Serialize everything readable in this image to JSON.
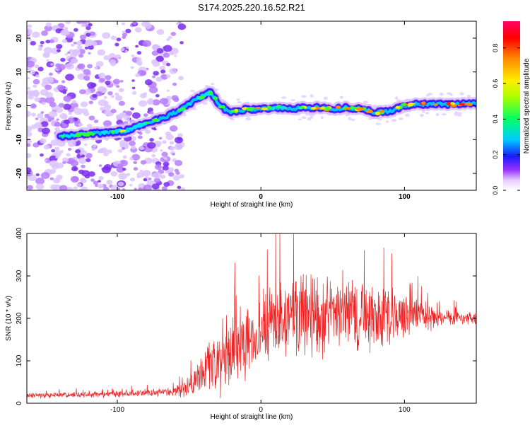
{
  "figure": {
    "title": "S174.2025.220.16.52.R21"
  },
  "chart_data": [
    {
      "type": "heatmap",
      "xlabel": "Height of straight line (km)",
      "ylabel": "Frequency (Hz)",
      "xlim": [
        -163,
        150
      ],
      "ylim": [
        -25,
        25
      ],
      "x_ticks": [
        -100,
        0,
        100
      ],
      "y_ticks": [
        -20,
        -10,
        0,
        10,
        20
      ],
      "colorbar": {
        "label": "Normalized spectral amplitude",
        "range": [
          0,
          0.95
        ],
        "ticks": [
          0.0,
          0.2,
          0.4,
          0.6,
          0.8
        ]
      },
      "ridge": {
        "x": [
          -140,
          -125,
          -110,
          -95,
          -85,
          -75,
          -65,
          -55,
          -45,
          -35,
          -30,
          -25,
          -20,
          -15,
          -10,
          0,
          10,
          20,
          30,
          40,
          50,
          60,
          70,
          80,
          90,
          100,
          110,
          120,
          130,
          140,
          150
        ],
        "y": [
          -9,
          -8.5,
          -8,
          -7.5,
          -6,
          -4.5,
          -3,
          -1,
          2,
          4,
          1,
          -1,
          -2,
          -1.5,
          -1,
          -1,
          -0.5,
          -1,
          -0.5,
          -0.5,
          -1,
          -0.5,
          -1,
          -2,
          -1.5,
          0,
          0.5,
          0.5,
          0.5,
          0.5,
          0.5
        ]
      },
      "grid": false
    },
    {
      "type": "line",
      "xlabel": "Height of straight line (km)",
      "ylabel": "SNR (10 * v/v)",
      "xlim": [
        -163,
        150
      ],
      "ylim": [
        0,
        400
      ],
      "x_ticks": [
        -100,
        0,
        100
      ],
      "y_ticks": [
        0,
        100,
        200,
        300,
        400
      ],
      "series": [
        {
          "color": "#ee2222",
          "envelope": {
            "x": [
              -163,
              -120,
              -100,
              -80,
              -60,
              -50,
              -45,
              -40,
              -35,
              -30,
              -25,
              -20,
              -15,
              -10,
              0,
              10,
              20,
              30,
              40,
              50,
              60,
              70,
              80,
              90,
              100,
              110,
              115,
              120,
              130,
              140,
              150
            ],
            "mean": [
              18,
              20,
              22,
              25,
              28,
              40,
              60,
              75,
              85,
              95,
              110,
              120,
              135,
              150,
              170,
              185,
              200,
              210,
              215,
              210,
              215,
              210,
              205,
              200,
              205,
              210,
              205,
              200,
              200,
              200,
              200
            ],
            "spread": [
              8,
              8,
              9,
              10,
              12,
              30,
              45,
              55,
              70,
              90,
              110,
              120,
              110,
              100,
              110,
              120,
              130,
              120,
              120,
              110,
              110,
              100,
              90,
              80,
              60,
              45,
              40,
              30,
              25,
              20,
              20
            ]
          }
        }
      ],
      "grid": false
    }
  ]
}
